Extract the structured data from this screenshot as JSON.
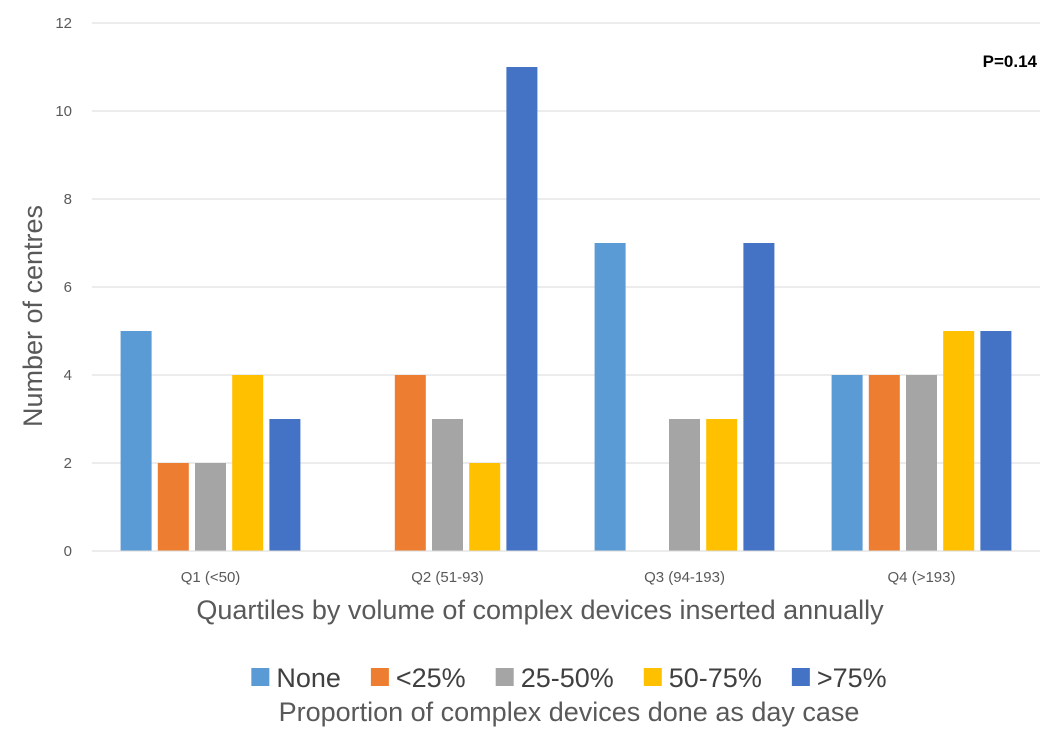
{
  "chart_data": {
    "type": "bar",
    "categories": [
      "Q1 (<50)",
      "Q2 (51-93)",
      "Q3 (94-193)",
      "Q4 (>193)"
    ],
    "series": [
      {
        "name": "None",
        "color": "#5B9BD5",
        "values": [
          5,
          0,
          7,
          4
        ]
      },
      {
        "name": "<25%",
        "color": "#ED7D31",
        "values": [
          2,
          4,
          0,
          4
        ]
      },
      {
        "name": "25-50%",
        "color": "#A5A5A5",
        "values": [
          2,
          3,
          3,
          4
        ]
      },
      {
        "name": "50-75%",
        "color": "#FFC000",
        "values": [
          4,
          2,
          3,
          5
        ]
      },
      {
        "name": ">75%",
        "color": "#4472C4",
        "values": [
          3,
          11,
          7,
          5
        ]
      }
    ],
    "xlabel": "Quartiles by volume of complex devices inserted annually",
    "ylabel": "Number of centres",
    "ylim": [
      0,
      12
    ],
    "yticks": [
      0,
      2,
      4,
      6,
      8,
      10,
      12
    ],
    "grid": true,
    "legend_title": "Proportion of complex devices done as day case",
    "legend_placement": "bottom",
    "annotation": "P=0.14"
  }
}
